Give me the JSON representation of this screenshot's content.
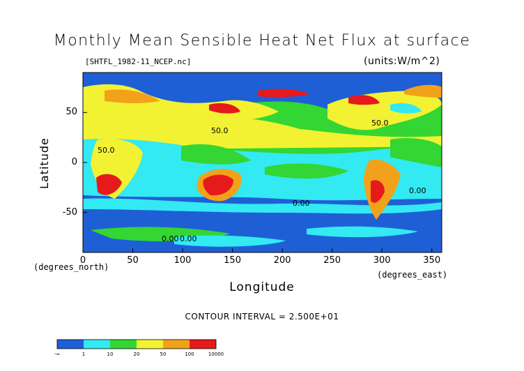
{
  "title": "Monthly Mean Sensible Heat Net Flux at surface",
  "filename": "[SHTFL_1982-11_NCEP.nc]",
  "units": "(units:W/m^2)",
  "xlabel": "Longitude",
  "ylabel": "Latitude",
  "xunit": "(degrees_east)",
  "yunit": "(degrees_north)",
  "contour_interval": "CONTOUR INTERVAL = 2.500E+01",
  "colors": {
    "blue": "#1f5fd6",
    "cyan": "#33e9f2",
    "green": "#33d633",
    "yellow": "#f2f233",
    "orange": "#f2a21a",
    "red": "#e61a1a"
  },
  "map": {
    "xlim": [
      0,
      360
    ],
    "ylim": [
      -90,
      90
    ],
    "x_ticks": [
      0,
      50,
      100,
      150,
      200,
      250,
      300,
      350
    ],
    "y_ticks": [
      50,
      0,
      -50
    ],
    "contour_labels": [
      "50.0",
      "50.0",
      "50.0",
      "0.00",
      "0.00",
      "0.00",
      "0.00"
    ]
  },
  "colorbar": {
    "labels": [
      "-∞",
      "1",
      "10",
      "20",
      "50",
      "100",
      "10000"
    ]
  }
}
